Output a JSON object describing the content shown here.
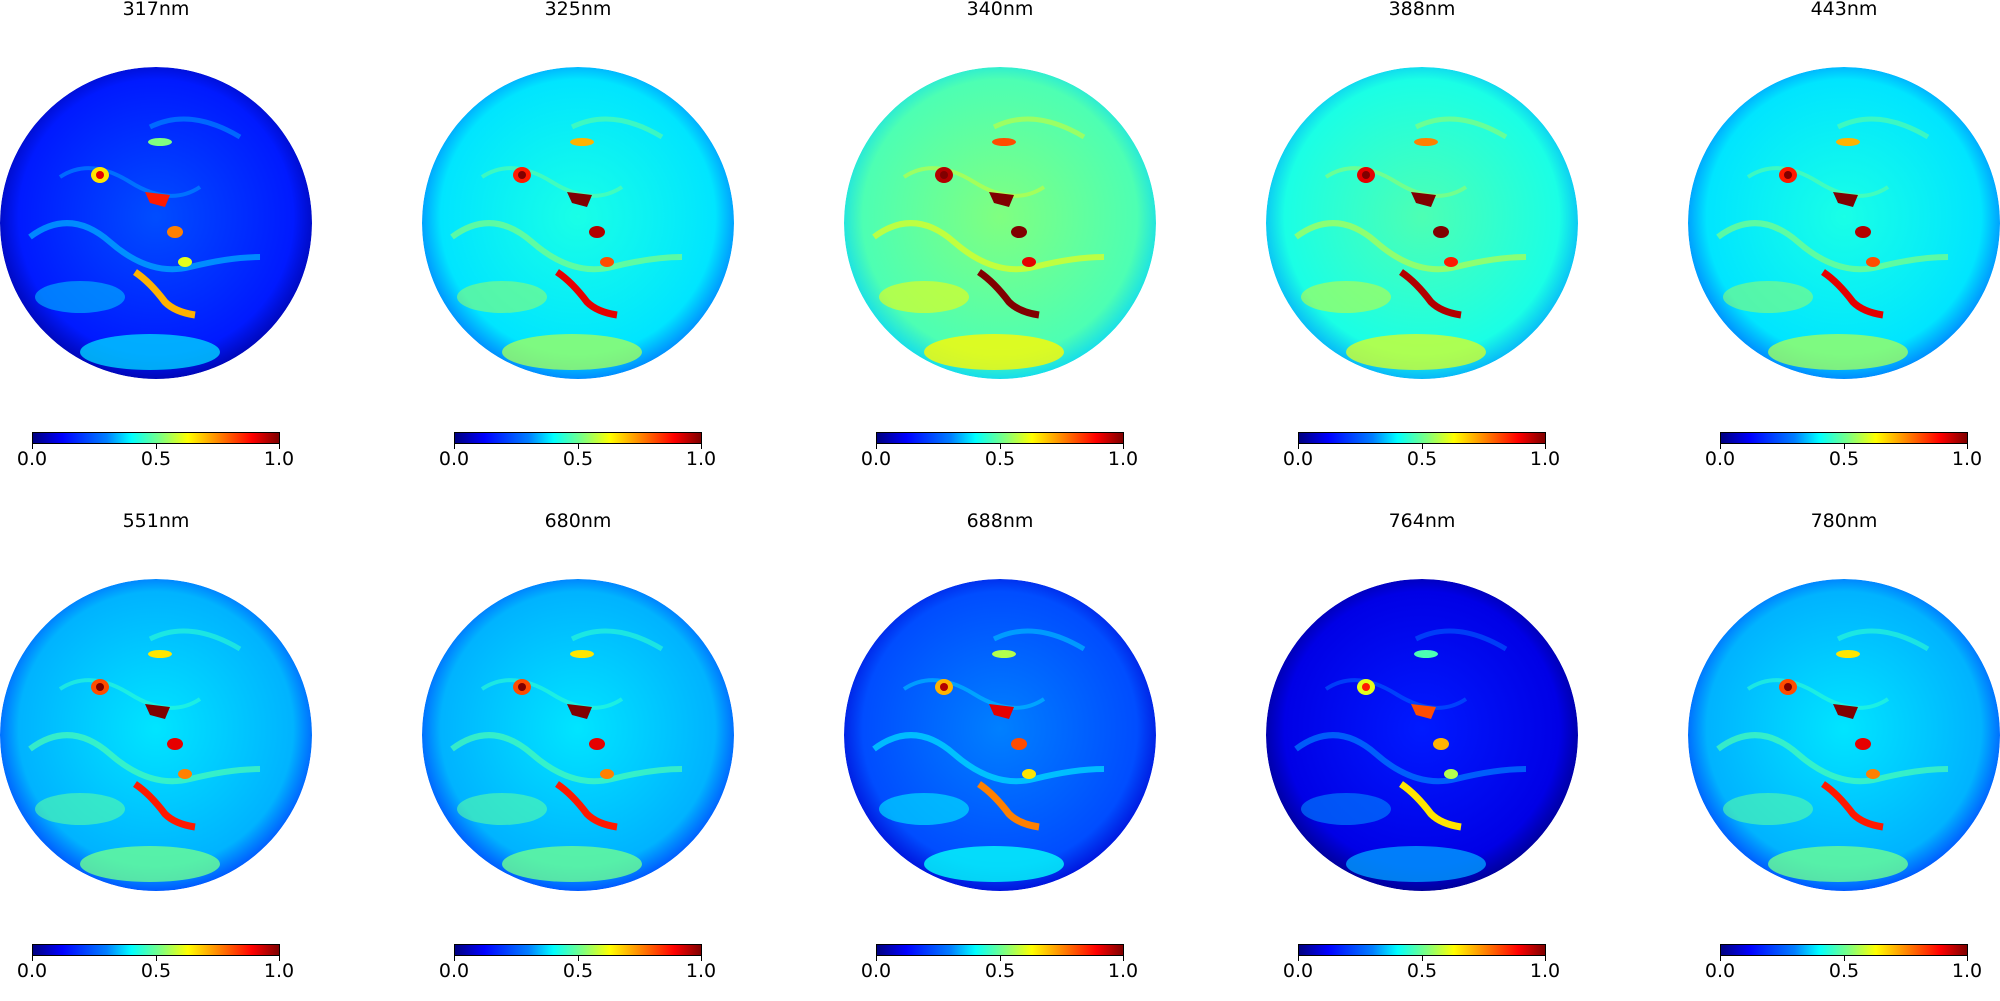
{
  "panels": [
    {
      "title": "317nm",
      "brightness": 0.15
    },
    {
      "title": "325nm",
      "brightness": 0.35
    },
    {
      "title": "340nm",
      "brightness": 0.45
    },
    {
      "title": "388nm",
      "brightness": 0.4
    },
    {
      "title": "443nm",
      "brightness": 0.35
    },
    {
      "title": "551nm",
      "brightness": 0.3
    },
    {
      "title": "680nm",
      "brightness": 0.3
    },
    {
      "title": "688nm",
      "brightness": 0.2
    },
    {
      "title": "764nm",
      "brightness": 0.1
    },
    {
      "title": "780nm",
      "brightness": 0.3
    }
  ],
  "colorbar": {
    "colormap": "jet",
    "tick_labels": [
      "0.0",
      "0.5",
      "1.0"
    ]
  },
  "colors": {
    "background": "#ffffff",
    "jet_low": "#00007f",
    "jet_high": "#7f0000"
  }
}
